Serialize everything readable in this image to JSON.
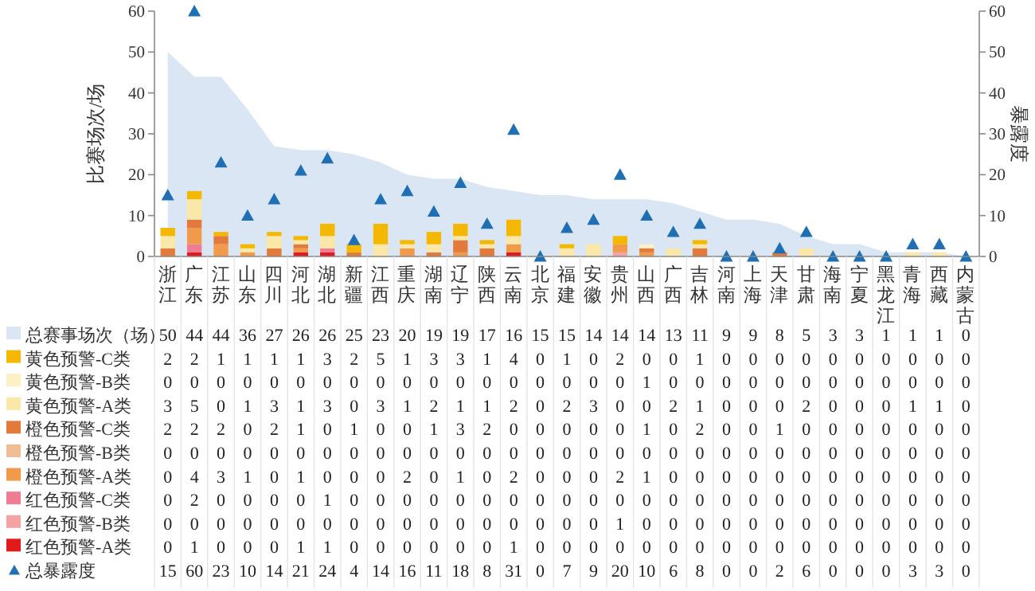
{
  "chart_data": {
    "type": "bar",
    "stacked": true,
    "data_labels": true,
    "legend": "bottom",
    "ylabel": "比赛场次/场",
    "y2label": "暴露度",
    "ylim": [
      0,
      60
    ],
    "yticks": [
      0,
      10,
      20,
      30,
      40,
      50,
      60
    ],
    "y2lim": [
      0,
      60
    ],
    "y2ticks": [
      0,
      10,
      20,
      30,
      40,
      50,
      60
    ],
    "categories": [
      "浙江",
      "广东",
      "江苏",
      "山东",
      "四川",
      "河北",
      "湖北",
      "新疆",
      "江西",
      "重庆",
      "湖南",
      "辽宁",
      "陕西",
      "云南",
      "北京",
      "福建",
      "安徽",
      "贵州",
      "山西",
      "广西",
      "吉林",
      "河南",
      "上海",
      "天津",
      "甘肃",
      "海南",
      "宁夏",
      "黑龙江",
      "青海",
      "西藏",
      "内蒙古"
    ],
    "series": [
      {
        "name": "总赛事场次（场）",
        "type": "area",
        "color": "#dae6f4",
        "values": [
          50,
          44,
          44,
          36,
          27,
          26,
          26,
          25,
          23,
          20,
          19,
          19,
          17,
          16,
          15,
          15,
          14,
          14,
          14,
          13,
          11,
          9,
          9,
          8,
          5,
          3,
          3,
          1,
          1,
          1,
          0
        ]
      },
      {
        "name": "红色预警-A类",
        "color": "#e31a1c",
        "values": [
          0,
          1,
          0,
          0,
          0,
          1,
          1,
          0,
          0,
          0,
          0,
          0,
          0,
          1,
          0,
          0,
          0,
          0,
          0,
          0,
          0,
          0,
          0,
          0,
          0,
          0,
          0,
          0,
          0,
          0,
          0
        ]
      },
      {
        "name": "红色预警-B类",
        "color": "#f4a3a3",
        "values": [
          0,
          0,
          0,
          0,
          0,
          0,
          0,
          0,
          0,
          0,
          0,
          0,
          0,
          0,
          0,
          0,
          0,
          1,
          0,
          0,
          0,
          0,
          0,
          0,
          0,
          0,
          0,
          0,
          0,
          0,
          0
        ]
      },
      {
        "name": "红色预警-C类",
        "color": "#f07c92",
        "values": [
          0,
          2,
          0,
          0,
          0,
          0,
          1,
          0,
          0,
          0,
          0,
          0,
          0,
          0,
          0,
          0,
          0,
          0,
          0,
          0,
          0,
          0,
          0,
          0,
          0,
          0,
          0,
          0,
          0,
          0,
          0
        ]
      },
      {
        "name": "橙色预警-A类",
        "color": "#f09a4a",
        "values": [
          0,
          4,
          3,
          1,
          0,
          1,
          0,
          0,
          0,
          2,
          0,
          1,
          0,
          2,
          0,
          0,
          0,
          2,
          1,
          0,
          0,
          0,
          0,
          0,
          0,
          0,
          0,
          0,
          0,
          0,
          0
        ]
      },
      {
        "name": "橙色预警-B类",
        "color": "#f2bc94",
        "values": [
          0,
          0,
          0,
          0,
          0,
          0,
          0,
          0,
          0,
          0,
          0,
          0,
          0,
          0,
          0,
          0,
          0,
          0,
          0,
          0,
          0,
          0,
          0,
          0,
          0,
          0,
          0,
          0,
          0,
          0,
          0
        ]
      },
      {
        "name": "橙色预警-C类",
        "color": "#e27a3c",
        "values": [
          2,
          2,
          2,
          0,
          2,
          1,
          0,
          1,
          0,
          0,
          1,
          3,
          2,
          0,
          0,
          0,
          0,
          0,
          1,
          0,
          2,
          0,
          0,
          1,
          0,
          0,
          0,
          0,
          0,
          0,
          0
        ]
      },
      {
        "name": "黄色预警-A类",
        "color": "#fbe7a8",
        "values": [
          3,
          5,
          0,
          1,
          3,
          1,
          3,
          0,
          3,
          1,
          2,
          1,
          1,
          2,
          0,
          2,
          3,
          0,
          0,
          2,
          1,
          0,
          0,
          0,
          2,
          0,
          0,
          0,
          1,
          1,
          0
        ]
      },
      {
        "name": "黄色预警-B类",
        "color": "#fdf0c4",
        "values": [
          0,
          0,
          0,
          0,
          0,
          0,
          0,
          0,
          0,
          0,
          0,
          0,
          0,
          0,
          0,
          0,
          0,
          0,
          1,
          0,
          0,
          0,
          0,
          0,
          0,
          0,
          0,
          0,
          0,
          0,
          0
        ]
      },
      {
        "name": "黄色预警-C类",
        "color": "#f5b800",
        "values": [
          2,
          2,
          1,
          1,
          1,
          1,
          3,
          2,
          5,
          1,
          3,
          3,
          1,
          4,
          0,
          1,
          0,
          2,
          0,
          0,
          1,
          0,
          0,
          0,
          0,
          0,
          0,
          0,
          0,
          0,
          0
        ]
      },
      {
        "name": "总暴露度",
        "type": "scatter",
        "axis": "y2",
        "marker": "triangle",
        "color": "#1f6fb4",
        "values": [
          15,
          60,
          23,
          10,
          14,
          21,
          24,
          4,
          14,
          16,
          11,
          18,
          8,
          31,
          0,
          7,
          9,
          20,
          10,
          6,
          8,
          0,
          0,
          2,
          6,
          0,
          0,
          0,
          3,
          3,
          0
        ]
      }
    ]
  }
}
